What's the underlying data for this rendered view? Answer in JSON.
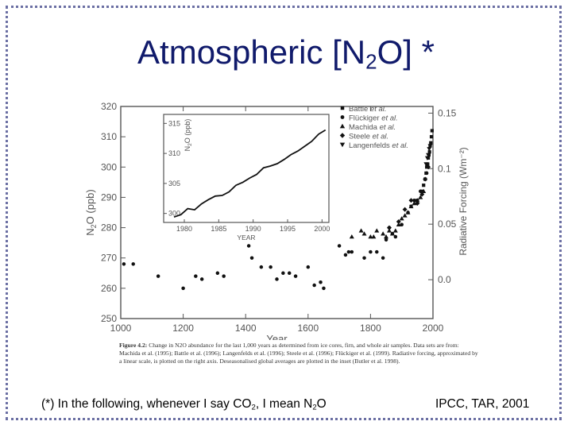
{
  "slide": {
    "title_pre": "Atmospheric [N",
    "title_sub": "2",
    "title_post": "O] *",
    "note_pre": "(*) In the following, whenever  I say CO",
    "note_sub1": "2",
    "note_mid": ", I mean N",
    "note_sub2": "2",
    "note_post": "O",
    "source": "IPCC, TAR, 2001"
  },
  "caption": {
    "figure": "Figure 4.2:",
    "text": "Change in N2O abundance for the last 1,000 years as determined from ice cores, firn, and whole air samples. Data sets are from: Machida et al. (1995); Battle et al. (1996); Langenfelds et al. (1996); Steele et al. (1996); Flückiger et al. (1999). Radiative forcing, approximated by a linear scale, is plotted on the right axis. Deseasonalised global averages are plotted in the inset (Butler et al. 1998)."
  },
  "chart_data": {
    "type": "scatter",
    "colors": {
      "ink": "#111111",
      "axis": "#555555",
      "title": "#101a6b",
      "frame": "#6b6fa3"
    },
    "xlabel": "Year",
    "ylabel_pre": "N",
    "ylabel_sub": "2",
    "ylabel_post": "O (ppb)",
    "y2label": "Radiative Forcing (Wm⁻²)",
    "xlim": [
      1000,
      2000
    ],
    "ylim": [
      250,
      320
    ],
    "xticks": [
      1000,
      1200,
      1400,
      1600,
      1800,
      2000
    ],
    "yticks": [
      250,
      260,
      270,
      280,
      290,
      300,
      310,
      320
    ],
    "y2lim": [
      -0.035,
      0.156
    ],
    "y2ticks": [
      0.0,
      0.05,
      0.1,
      0.15
    ],
    "y2ticklabels": [
      "0.0",
      "0.05",
      "0.1",
      "0.15"
    ],
    "legend": [
      {
        "marker": "square",
        "name": "Battle",
        "etal": "et al."
      },
      {
        "marker": "circle",
        "name": "Flückiger",
        "etal": "et al."
      },
      {
        "marker": "triangle",
        "name": "Machida",
        "etal": "et al."
      },
      {
        "marker": "diamond",
        "name": "Steele",
        "etal": "et al."
      },
      {
        "marker": "triangle-down",
        "name": "Langenfelds",
        "etal": "et al."
      }
    ],
    "series": [
      {
        "name": "Flückiger et al.",
        "marker": "circle",
        "points": [
          [
            1010,
            268
          ],
          [
            1040,
            268
          ],
          [
            1120,
            264
          ],
          [
            1200,
            260
          ],
          [
            1240,
            264
          ],
          [
            1260,
            263
          ],
          [
            1310,
            265
          ],
          [
            1330,
            264
          ],
          [
            1410,
            274
          ],
          [
            1420,
            270
          ],
          [
            1450,
            267
          ],
          [
            1480,
            267
          ],
          [
            1500,
            263
          ],
          [
            1520,
            265
          ],
          [
            1540,
            265
          ],
          [
            1560,
            264
          ],
          [
            1600,
            267
          ],
          [
            1620,
            261
          ],
          [
            1640,
            262
          ],
          [
            1650,
            260
          ],
          [
            1700,
            274
          ],
          [
            1720,
            271
          ],
          [
            1730,
            272
          ],
          [
            1740,
            272
          ],
          [
            1780,
            270
          ],
          [
            1800,
            272
          ],
          [
            1820,
            272
          ],
          [
            1840,
            270
          ],
          [
            1850,
            276
          ],
          [
            1860,
            280
          ],
          [
            1870,
            278
          ],
          [
            1880,
            277
          ],
          [
            1900,
            281
          ],
          [
            1920,
            285
          ],
          [
            1940,
            289
          ],
          [
            1960,
            292
          ],
          [
            1980,
            298
          ]
        ]
      },
      {
        "name": "Machida et al.",
        "marker": "triangle",
        "points": [
          [
            1740,
            277
          ],
          [
            1770,
            279
          ],
          [
            1780,
            278
          ],
          [
            1800,
            277
          ],
          [
            1810,
            277
          ],
          [
            1820,
            279
          ],
          [
            1840,
            278
          ],
          [
            1850,
            277
          ],
          [
            1860,
            279
          ],
          [
            1870,
            278
          ],
          [
            1880,
            279
          ],
          [
            1890,
            281
          ],
          [
            1900,
            283
          ],
          [
            1910,
            284
          ],
          [
            1920,
            285
          ],
          [
            1930,
            287
          ],
          [
            1940,
            288
          ],
          [
            1950,
            289
          ],
          [
            1960,
            290
          ],
          [
            1970,
            292
          ]
        ]
      },
      {
        "name": "Steele et al.",
        "marker": "diamond",
        "points": [
          [
            1860,
            280
          ],
          [
            1890,
            282
          ],
          [
            1910,
            286
          ],
          [
            1930,
            289
          ],
          [
            1950,
            288
          ],
          [
            1965,
            291
          ],
          [
            1975,
            296
          ],
          [
            1985,
            300
          ]
        ]
      },
      {
        "name": "Langenfelds et al.",
        "marker": "triangle-down",
        "points": [
          [
            1978,
            301
          ],
          [
            1982,
            303
          ],
          [
            1985,
            304
          ],
          [
            1988,
            306
          ],
          [
            1991,
            307
          ]
        ]
      },
      {
        "name": "Battle et al.",
        "marker": "square",
        "points": [
          [
            1930,
            287
          ],
          [
            1950,
            289
          ],
          [
            1965,
            292
          ],
          [
            1970,
            294
          ],
          [
            1975,
            296
          ],
          [
            1978,
            298
          ],
          [
            1980,
            300
          ],
          [
            1983,
            301
          ],
          [
            1985,
            303
          ],
          [
            1987,
            304
          ],
          [
            1989,
            305
          ],
          [
            1991,
            307
          ],
          [
            1993,
            308
          ],
          [
            1995,
            310
          ],
          [
            1997,
            312
          ]
        ]
      }
    ],
    "inset": {
      "xlabel": "YEAR",
      "ylabel_pre": "N",
      "ylabel_sub": "2",
      "ylabel_post": "O (ppb)",
      "xlim": [
        1977,
        2001
      ],
      "ylim": [
        298.5,
        316.5
      ],
      "xticks": [
        1980,
        1985,
        1990,
        1995,
        2000
      ],
      "yticks": [
        300,
        305,
        310,
        315
      ],
      "series": [
        [
          1978.5,
          299.4
        ],
        [
          1979.5,
          299.8
        ],
        [
          1980.5,
          300.8
        ],
        [
          1981.5,
          300.6
        ],
        [
          1982.5,
          301.6
        ],
        [
          1983.5,
          302.3
        ],
        [
          1984.5,
          302.9
        ],
        [
          1985.5,
          303.0
        ],
        [
          1986.5,
          303.6
        ],
        [
          1987.5,
          304.7
        ],
        [
          1988.5,
          305.2
        ],
        [
          1989.5,
          305.9
        ],
        [
          1990.5,
          306.5
        ],
        [
          1991.5,
          307.6
        ],
        [
          1992.5,
          307.9
        ],
        [
          1993.5,
          308.3
        ],
        [
          1994.5,
          309.0
        ],
        [
          1995.5,
          309.8
        ],
        [
          1996.5,
          310.4
        ],
        [
          1997.5,
          311.2
        ],
        [
          1998.5,
          312.0
        ],
        [
          1999.5,
          313.2
        ],
        [
          2000.5,
          313.9
        ]
      ]
    }
  }
}
